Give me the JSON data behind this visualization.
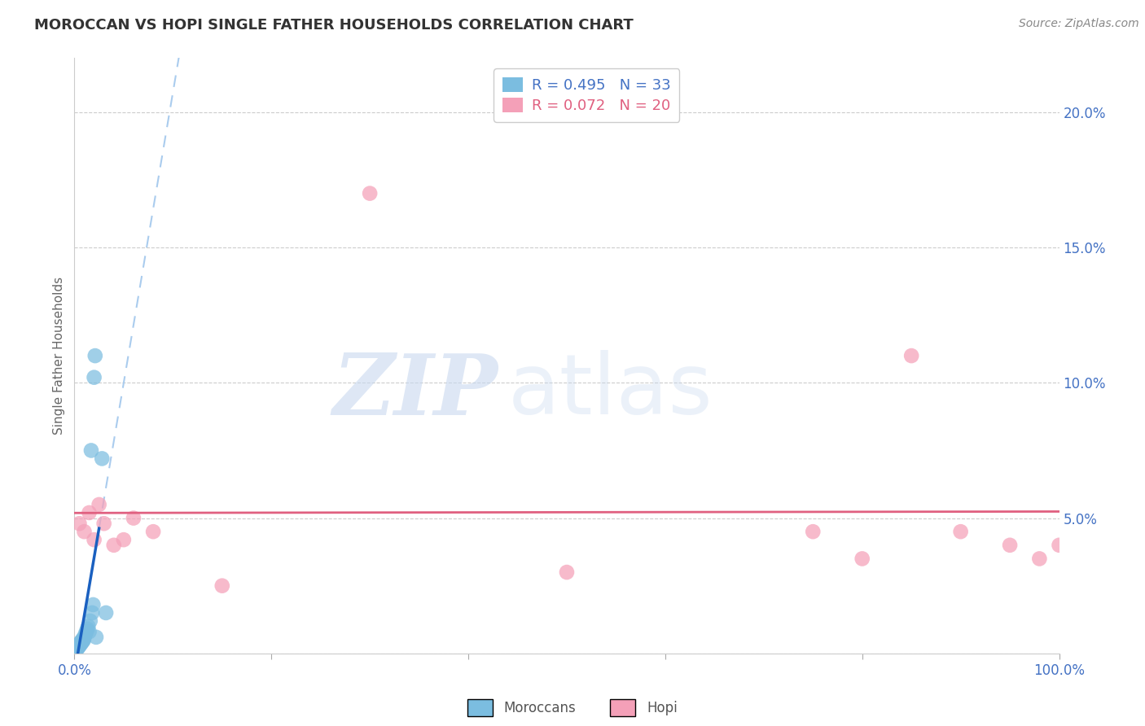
{
  "title": "MOROCCAN VS HOPI SINGLE FATHER HOUSEHOLDS CORRELATION CHART",
  "source": "Source: ZipAtlas.com",
  "ylabel": "Single Father Households",
  "legend_label1": "Moroccans",
  "legend_label2": "Hopi",
  "R1": 0.495,
  "N1": 33,
  "R2": 0.072,
  "N2": 20,
  "xlim": [
    0,
    100
  ],
  "ylim": [
    0,
    22
  ],
  "color_blue": "#7bbde0",
  "color_blue_line": "#1a60c0",
  "color_pink": "#f4a0b8",
  "color_pink_line": "#e06080",
  "color_dashed": "#aaccee",
  "moroccan_x": [
    0.1,
    0.15,
    0.2,
    0.25,
    0.3,
    0.35,
    0.4,
    0.45,
    0.5,
    0.55,
    0.6,
    0.65,
    0.7,
    0.75,
    0.8,
    0.85,
    0.9,
    0.95,
    1.0,
    1.1,
    1.2,
    1.3,
    1.4,
    1.5,
    1.6,
    1.7,
    1.8,
    1.9,
    2.0,
    2.1,
    2.2,
    2.8,
    3.2
  ],
  "moroccan_y": [
    0.1,
    0.15,
    0.2,
    0.15,
    0.25,
    0.2,
    0.3,
    0.25,
    0.35,
    0.3,
    0.4,
    0.35,
    0.45,
    0.4,
    0.5,
    0.45,
    0.55,
    0.5,
    0.6,
    0.7,
    0.8,
    0.9,
    1.0,
    0.8,
    1.2,
    7.5,
    1.5,
    1.8,
    10.2,
    11.0,
    0.6,
    7.2,
    1.5
  ],
  "hopi_x": [
    0.5,
    1.0,
    1.5,
    2.0,
    2.5,
    3.0,
    4.0,
    5.0,
    6.0,
    8.0,
    15.0,
    30.0,
    50.0,
    75.0,
    80.0,
    85.0,
    90.0,
    95.0,
    98.0,
    100.0
  ],
  "hopi_y": [
    4.8,
    4.5,
    5.2,
    4.2,
    5.5,
    4.8,
    4.0,
    4.2,
    5.0,
    4.5,
    2.5,
    17.0,
    3.0,
    4.5,
    3.5,
    11.0,
    4.5,
    4.0,
    3.5,
    4.0
  ],
  "watermark_text": "ZIPatlas",
  "background_color": "#ffffff",
  "grid_color": "#cccccc",
  "axis_color": "#4472c4",
  "tick_fontsize": 12,
  "legend_fontsize": 13,
  "title_fontsize": 13,
  "source_fontsize": 10
}
